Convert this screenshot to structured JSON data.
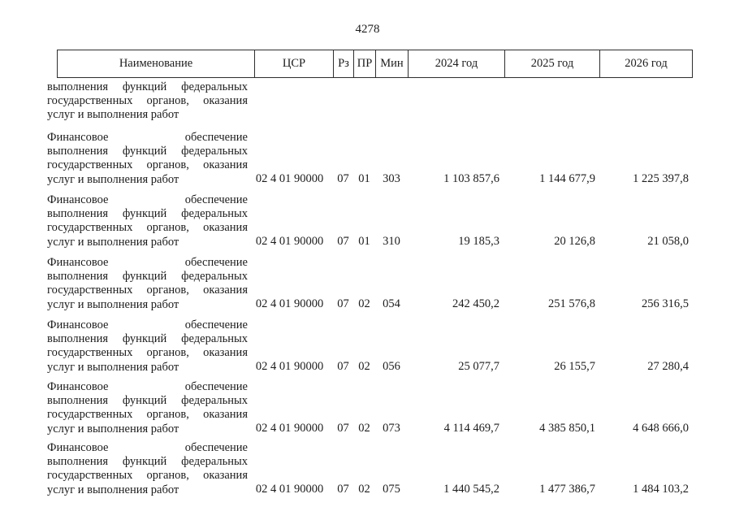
{
  "page_number": "4278",
  "table": {
    "header": {
      "name": "Наименование",
      "csr": "ЦСР",
      "rz": "Рз",
      "pr": "ПР",
      "min": "Мин",
      "y2024": "2024 год",
      "y2025": "2025 год",
      "y2026": "2026 год"
    },
    "carryover_row": {
      "name_lines": [
        "выполнения функций федеральных",
        "государственных органов, оказания",
        "услуг и выполнения работ"
      ]
    },
    "rows": [
      {
        "name_lines": [
          "Финансовое обеспечение",
          "выполнения функций федеральных",
          "государственных органов, оказания",
          "услуг и выполнения работ"
        ],
        "csr": "02 4 01 90000",
        "rz": "07",
        "pr": "01",
        "min": "303",
        "y2024": "1 103 857,6",
        "y2025": "1 144 677,9",
        "y2026": "1 225 397,8"
      },
      {
        "name_lines": [
          "Финансовое обеспечение",
          "выполнения функций федеральных",
          "государственных органов, оказания",
          "услуг и выполнения работ"
        ],
        "csr": "02 4 01 90000",
        "rz": "07",
        "pr": "01",
        "min": "310",
        "y2024": "19 185,3",
        "y2025": "20 126,8",
        "y2026": "21 058,0"
      },
      {
        "name_lines": [
          "Финансовое обеспечение",
          "выполнения функций федеральных",
          "государственных органов, оказания",
          "услуг и выполнения работ"
        ],
        "csr": "02 4 01 90000",
        "rz": "07",
        "pr": "02",
        "min": "054",
        "y2024": "242 450,2",
        "y2025": "251 576,8",
        "y2026": "256 316,5"
      },
      {
        "name_lines": [
          "Финансовое обеспечение",
          "выполнения функций федеральных",
          "государственных органов, оказания",
          "услуг и выполнения работ"
        ],
        "csr": "02 4 01 90000",
        "rz": "07",
        "pr": "02",
        "min": "056",
        "y2024": "25 077,7",
        "y2025": "26 155,7",
        "y2026": "27 280,4"
      },
      {
        "name_lines": [
          "Финансовое обеспечение",
          "выполнения функций федеральных",
          "государственных органов, оказания",
          "услуг и выполнения работ"
        ],
        "csr": "02 4 01 90000",
        "rz": "07",
        "pr": "02",
        "min": "073",
        "y2024": "4 114 469,7",
        "y2025": "4 385 850,1",
        "y2026": "4 648 666,0"
      },
      {
        "name_lines": [
          "Финансовое обеспечение",
          "выполнения функций федеральных",
          "государственных органов, оказания",
          "услуг и выполнения работ"
        ],
        "csr": "02 4 01 90000",
        "rz": "07",
        "pr": "02",
        "min": "075",
        "y2024": "1 440 545,2",
        "y2025": "1 477 386,7",
        "y2026": "1 484 103,2"
      }
    ]
  }
}
